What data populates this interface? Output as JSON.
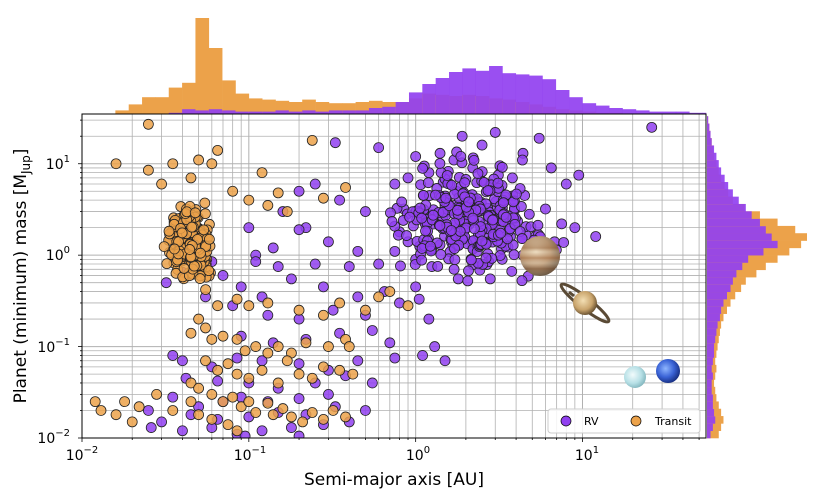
{
  "chart_data": {
    "type": "scatter",
    "xlabel": "Semi-major axis [AU]",
    "ylabel": "Planet (minimum) mass [M",
    "ylabel_subscript": "Jup",
    "ylabel_end": "]",
    "xscale": "log",
    "yscale": "log",
    "xlim": [
      0.01,
      55
    ],
    "ylim": [
      0.01,
      35
    ],
    "grid": true,
    "x_ticks": [
      {
        "value": 0.01,
        "base": "10",
        "exp": "−2"
      },
      {
        "value": 0.1,
        "base": "10",
        "exp": "−1"
      },
      {
        "value": 1,
        "base": "10",
        "exp": "0"
      },
      {
        "value": 10,
        "base": "10",
        "exp": "1"
      }
    ],
    "y_ticks": [
      {
        "value": 0.01,
        "base": "10",
        "exp": "−2"
      },
      {
        "value": 0.1,
        "base": "10",
        "exp": "−1"
      },
      {
        "value": 1,
        "base": "10",
        "exp": "0"
      },
      {
        "value": 10,
        "base": "10",
        "exp": "1"
      }
    ],
    "legend": {
      "placement": "lower-right",
      "entries": [
        "RV",
        "Transit"
      ]
    },
    "series": [
      {
        "name": "RV",
        "color": "#9140f0",
        "points": [
          [
            26,
            25
          ],
          [
            3,
            22
          ],
          [
            1.9,
            20
          ],
          [
            2.5,
            16
          ],
          [
            1.4,
            13
          ],
          [
            1.0,
            12
          ],
          [
            0.6,
            15
          ],
          [
            0.33,
            17
          ],
          [
            5.5,
            19
          ],
          [
            4.4,
            13
          ],
          [
            2.2,
            9
          ],
          [
            3.2,
            9.5
          ],
          [
            1.2,
            8
          ],
          [
            0.9,
            7
          ],
          [
            0.75,
            6
          ],
          [
            1.6,
            6
          ],
          [
            2.8,
            6
          ],
          [
            3.8,
            7
          ],
          [
            6.5,
            9
          ],
          [
            9.5,
            7.5
          ],
          [
            8,
            6
          ],
          [
            4.5,
            4.5
          ],
          [
            2.3,
            4
          ],
          [
            1.5,
            3.5
          ],
          [
            0.85,
            3.2
          ],
          [
            0.5,
            3
          ],
          [
            0.35,
            4
          ],
          [
            0.25,
            6
          ],
          [
            0.2,
            5
          ],
          [
            0.16,
            3
          ],
          [
            0.22,
            2
          ],
          [
            1.1,
            2.5
          ],
          [
            1.8,
            2
          ],
          [
            2.6,
            2.2
          ],
          [
            3.5,
            2.5
          ],
          [
            4.8,
            2.8
          ],
          [
            6,
            3.2
          ],
          [
            7.5,
            2.2
          ],
          [
            9,
            2
          ],
          [
            12,
            1.6
          ],
          [
            6.8,
            1.4
          ],
          [
            5.2,
            1.6
          ],
          [
            3.7,
            1.6
          ],
          [
            2.2,
            1.2
          ],
          [
            1.4,
            1.3
          ],
          [
            0.9,
            1.4
          ],
          [
            0.8,
            1.8
          ],
          [
            0.45,
            1.1
          ],
          [
            0.3,
            1.4
          ],
          [
            0.2,
            1.9
          ],
          [
            0.14,
            1.2
          ],
          [
            0.11,
            1.0
          ],
          [
            0.1,
            2
          ],
          [
            0.11,
            0.85
          ],
          [
            0.15,
            0.75
          ],
          [
            0.25,
            0.8
          ],
          [
            0.4,
            0.75
          ],
          [
            0.6,
            0.8
          ],
          [
            0.75,
            1.1
          ],
          [
            1.0,
            0.9
          ],
          [
            1.25,
            0.75
          ],
          [
            1.7,
            0.7
          ],
          [
            2.4,
            0.8
          ],
          [
            3.3,
            0.9
          ],
          [
            4.4,
            1.0
          ],
          [
            1.8,
            0.55
          ],
          [
            2.8,
            0.55
          ],
          [
            1.0,
            0.45
          ],
          [
            0.65,
            0.4
          ],
          [
            0.45,
            0.35
          ],
          [
            0.28,
            0.45
          ],
          [
            0.18,
            0.55
          ],
          [
            0.12,
            0.35
          ],
          [
            0.09,
            0.45
          ],
          [
            0.07,
            0.6
          ],
          [
            0.06,
            0.85
          ],
          [
            0.045,
            1.1
          ],
          [
            0.04,
            0.65
          ],
          [
            0.032,
            0.5
          ],
          [
            0.055,
            0.35
          ],
          [
            0.08,
            0.28
          ],
          [
            0.13,
            0.22
          ],
          [
            0.2,
            0.2
          ],
          [
            0.32,
            0.25
          ],
          [
            0.5,
            0.22
          ],
          [
            0.8,
            0.3
          ],
          [
            1.05,
            0.33
          ],
          [
            1.2,
            0.2
          ],
          [
            0.55,
            0.15
          ],
          [
            0.35,
            0.14
          ],
          [
            0.22,
            0.12
          ],
          [
            0.14,
            0.11
          ],
          [
            0.09,
            0.13
          ],
          [
            0.7,
            0.11
          ],
          [
            1.1,
            0.08
          ],
          [
            1.5,
            0.07
          ],
          [
            1.3,
            0.1
          ],
          [
            0.75,
            0.075
          ],
          [
            0.45,
            0.07
          ],
          [
            0.3,
            0.055
          ],
          [
            0.2,
            0.065
          ],
          [
            0.12,
            0.07
          ],
          [
            0.085,
            0.075
          ],
          [
            0.06,
            0.06
          ],
          [
            0.04,
            0.07
          ],
          [
            0.035,
            0.08
          ],
          [
            0.042,
            0.045
          ],
          [
            0.065,
            0.042
          ],
          [
            0.1,
            0.04
          ],
          [
            0.15,
            0.035
          ],
          [
            0.25,
            0.04
          ],
          [
            0.38,
            0.048
          ],
          [
            0.55,
            0.04
          ],
          [
            0.3,
            0.03
          ],
          [
            0.2,
            0.027
          ],
          [
            0.13,
            0.025
          ],
          [
            0.09,
            0.028
          ],
          [
            0.07,
            0.025
          ],
          [
            0.05,
            0.022
          ],
          [
            0.035,
            0.028
          ],
          [
            0.045,
            0.018
          ],
          [
            0.065,
            0.016
          ],
          [
            0.1,
            0.017
          ],
          [
            0.15,
            0.019
          ],
          [
            0.22,
            0.018
          ],
          [
            0.33,
            0.022
          ],
          [
            0.5,
            0.02
          ],
          [
            0.4,
            0.015
          ],
          [
            0.28,
            0.014
          ],
          [
            0.18,
            0.013
          ],
          [
            0.12,
            0.012
          ],
          [
            0.085,
            0.011
          ],
          [
            0.06,
            0.013
          ],
          [
            0.04,
            0.012
          ],
          [
            0.03,
            0.015
          ],
          [
            0.025,
            0.02
          ],
          [
            0.026,
            0.013
          ],
          [
            0.095,
            0.0105
          ],
          [
            0.2,
            0.0105
          ]
        ],
        "cluster": {
          "center_x": 2.0,
          "center_y": 2.5,
          "count": 320,
          "spread_log_x": 0.36,
          "spread_log_y": 0.45
        }
      },
      {
        "name": "Transit",
        "color": "#eca24a",
        "points": [
          [
            0.025,
            27
          ],
          [
            0.016,
            10
          ],
          [
            0.025,
            8.5
          ],
          [
            0.035,
            10
          ],
          [
            0.05,
            11
          ],
          [
            0.045,
            7
          ],
          [
            0.03,
            6
          ],
          [
            0.065,
            14
          ],
          [
            0.06,
            10
          ],
          [
            0.08,
            5
          ],
          [
            0.1,
            4
          ],
          [
            0.13,
            3.5
          ],
          [
            0.17,
            3
          ],
          [
            0.24,
            18
          ],
          [
            0.38,
            5.5
          ],
          [
            0.28,
            4.2
          ],
          [
            0.12,
            8
          ],
          [
            0.15,
            4.8
          ],
          [
            0.05,
            0.2
          ],
          [
            0.055,
            0.16
          ],
          [
            0.045,
            0.14
          ],
          [
            0.06,
            0.12
          ],
          [
            0.07,
            0.13
          ],
          [
            0.085,
            0.12
          ],
          [
            0.095,
            0.09
          ],
          [
            0.11,
            0.1
          ],
          [
            0.13,
            0.085
          ],
          [
            0.15,
            0.1
          ],
          [
            0.18,
            0.085
          ],
          [
            0.22,
            0.11
          ],
          [
            0.3,
            0.1
          ],
          [
            0.38,
            0.12
          ],
          [
            0.5,
            0.25
          ],
          [
            0.6,
            0.35
          ],
          [
            0.35,
            0.3
          ],
          [
            0.28,
            0.22
          ],
          [
            0.2,
            0.25
          ],
          [
            0.13,
            0.3
          ],
          [
            0.1,
            0.28
          ],
          [
            0.085,
            0.33
          ],
          [
            0.065,
            0.28
          ],
          [
            0.055,
            0.07
          ],
          [
            0.065,
            0.055
          ],
          [
            0.075,
            0.065
          ],
          [
            0.085,
            0.05
          ],
          [
            0.1,
            0.045
          ],
          [
            0.12,
            0.055
          ],
          [
            0.15,
            0.04
          ],
          [
            0.17,
            0.07
          ],
          [
            0.2,
            0.05
          ],
          [
            0.24,
            0.045
          ],
          [
            0.28,
            0.06
          ],
          [
            0.35,
            0.055
          ],
          [
            0.42,
            0.05
          ],
          [
            0.045,
            0.04
          ],
          [
            0.05,
            0.035
          ],
          [
            0.06,
            0.03
          ],
          [
            0.07,
            0.025
          ],
          [
            0.08,
            0.028
          ],
          [
            0.09,
            0.022
          ],
          [
            0.1,
            0.025
          ],
          [
            0.11,
            0.019
          ],
          [
            0.13,
            0.024
          ],
          [
            0.14,
            0.018
          ],
          [
            0.16,
            0.021
          ],
          [
            0.18,
            0.017
          ],
          [
            0.21,
            0.015
          ],
          [
            0.24,
            0.019
          ],
          [
            0.28,
            0.016
          ],
          [
            0.32,
            0.02
          ],
          [
            0.38,
            0.017
          ],
          [
            0.045,
            0.025
          ],
          [
            0.05,
            0.018
          ],
          [
            0.06,
            0.016
          ],
          [
            0.075,
            0.014
          ],
          [
            0.085,
            0.012
          ],
          [
            0.035,
            0.02
          ],
          [
            0.028,
            0.03
          ],
          [
            0.022,
            0.022
          ],
          [
            0.018,
            0.025
          ],
          [
            0.016,
            0.018
          ],
          [
            0.02,
            0.015
          ],
          [
            0.013,
            0.02
          ],
          [
            0.012,
            0.025
          ],
          [
            0.4,
            0.1
          ],
          [
            0.7,
            0.4
          ],
          [
            0.9,
            0.28
          ]
        ],
        "cluster": {
          "center_x": 0.045,
          "center_y": 1.4,
          "count": 260,
          "spread_log_x": 0.1,
          "spread_log_y": 0.28
        }
      }
    ],
    "histogram_top": {
      "bins_log_x": [
        -1.8,
        -1.72,
        -1.64,
        -1.56,
        -1.48,
        -1.4,
        -1.32,
        -1.24,
        -1.16,
        -1.08,
        -1.0,
        -0.92,
        -0.84,
        -0.76,
        -0.68,
        -0.6,
        -0.52,
        -0.44,
        -0.36,
        -0.28,
        -0.2,
        -0.12,
        -0.04,
        0.04,
        0.12,
        0.2,
        0.28,
        0.36,
        0.44,
        0.52,
        0.6,
        0.68,
        0.76,
        0.84,
        0.92,
        1.0,
        1.08,
        1.16,
        1.24,
        1.32,
        1.4,
        1.48,
        1.56,
        1.64,
        1.72
      ],
      "transit": [
        3,
        8,
        14,
        14,
        22,
        26,
        80,
        55,
        28,
        17,
        13,
        12,
        11,
        10,
        12,
        10,
        9,
        9,
        10,
        11,
        10,
        10,
        13,
        17,
        16,
        15,
        16,
        15,
        13,
        12,
        10,
        8,
        6,
        4,
        3,
        2,
        1,
        1,
        0,
        0,
        0,
        0,
        0,
        0,
        0
      ],
      "rv": [
        0,
        0,
        0,
        0,
        1,
        4,
        3,
        4,
        3,
        2,
        2,
        2,
        3,
        2,
        3,
        2,
        3,
        3,
        3,
        5,
        6,
        10,
        18,
        25,
        30,
        35,
        38,
        36,
        40,
        34,
        33,
        32,
        29,
        20,
        14,
        9,
        7,
        5,
        4,
        3,
        2,
        2,
        2,
        1,
        1
      ]
    },
    "histogram_right": {
      "bins_log_y": [
        -2.0,
        -1.92,
        -1.84,
        -1.76,
        -1.68,
        -1.6,
        -1.52,
        -1.44,
        -1.36,
        -1.28,
        -1.2,
        -1.12,
        -1.04,
        -0.96,
        -0.88,
        -0.8,
        -0.72,
        -0.64,
        -0.56,
        -0.48,
        -0.4,
        -0.32,
        -0.24,
        -0.16,
        -0.08,
        0.0,
        0.08,
        0.16,
        0.24,
        0.32,
        0.4,
        0.48,
        0.56,
        0.64,
        0.72,
        0.8,
        0.88,
        0.96,
        1.04,
        1.12,
        1.2,
        1.28,
        1.36,
        1.44
      ],
      "transit": [
        10,
        12,
        14,
        12,
        10,
        8,
        7,
        6,
        7,
        8,
        7,
        8,
        9,
        10,
        11,
        12,
        14,
        17,
        20,
        24,
        29,
        33,
        42,
        50,
        60,
        70,
        80,
        85,
        75,
        60,
        45,
        32,
        22,
        18,
        15,
        12,
        10,
        8,
        6,
        5,
        4,
        3,
        2,
        1
      ],
      "rv": [
        3,
        5,
        7,
        6,
        5,
        5,
        4,
        4,
        5,
        4,
        5,
        6,
        6,
        7,
        8,
        9,
        11,
        12,
        14,
        17,
        20,
        22,
        25,
        30,
        35,
        48,
        60,
        55,
        50,
        45,
        38,
        33,
        27,
        22,
        18,
        15,
        12,
        10,
        8,
        6,
        4,
        3,
        2,
        1
      ]
    }
  }
}
